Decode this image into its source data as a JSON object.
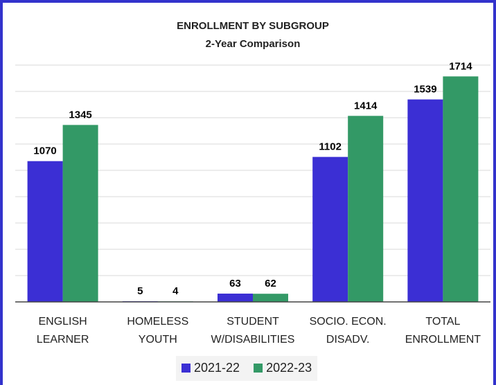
{
  "chart_data": {
    "type": "bar",
    "title": "ENROLLMENT BY SUBGROUP",
    "subtitle": "2-Year Comparison",
    "categories": [
      "ENGLISH\nLEARNER",
      "HOMELESS\nYOUTH",
      "STUDENT\nW/DISABILITIES",
      "SOCIO. ECON.\nDISADV.",
      "TOTAL\nENROLLMENT"
    ],
    "series": [
      {
        "name": "2021-22",
        "color": "#3b2fd4",
        "values": [
          1070,
          5,
          63,
          1102,
          1539
        ]
      },
      {
        "name": "2022-23",
        "color": "#339966",
        "values": [
          1345,
          4,
          62,
          1414,
          1714
        ]
      }
    ],
    "ylim": [
      0,
      1800
    ],
    "yticks": [
      0,
      200,
      400,
      600,
      800,
      1000,
      1200,
      1400,
      1600,
      1800
    ],
    "grid": true,
    "legend": "bottom"
  }
}
